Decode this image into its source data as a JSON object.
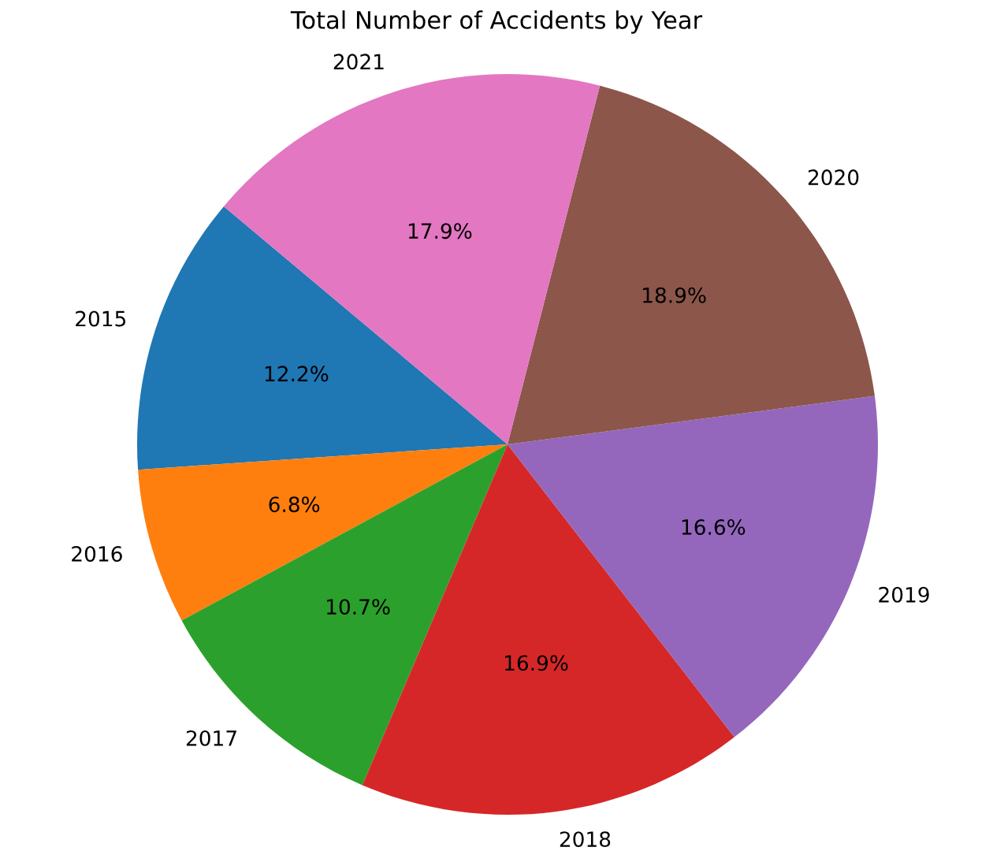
{
  "chart_data": {
    "type": "pie",
    "title": "Total Number of Accidents by Year",
    "categories": [
      "2015",
      "2016",
      "2017",
      "2018",
      "2019",
      "2020",
      "2021"
    ],
    "values": [
      12.2,
      6.8,
      10.7,
      16.9,
      16.6,
      18.9,
      17.9
    ],
    "value_labels": [
      "12.2%",
      "6.8%",
      "10.7%",
      "16.9%",
      "16.6%",
      "18.9%",
      "17.9%"
    ],
    "colors": [
      "#1f77b4",
      "#ff7f0e",
      "#2ca02c",
      "#d62728",
      "#9467bd",
      "#8c564b",
      "#e377c2"
    ]
  }
}
